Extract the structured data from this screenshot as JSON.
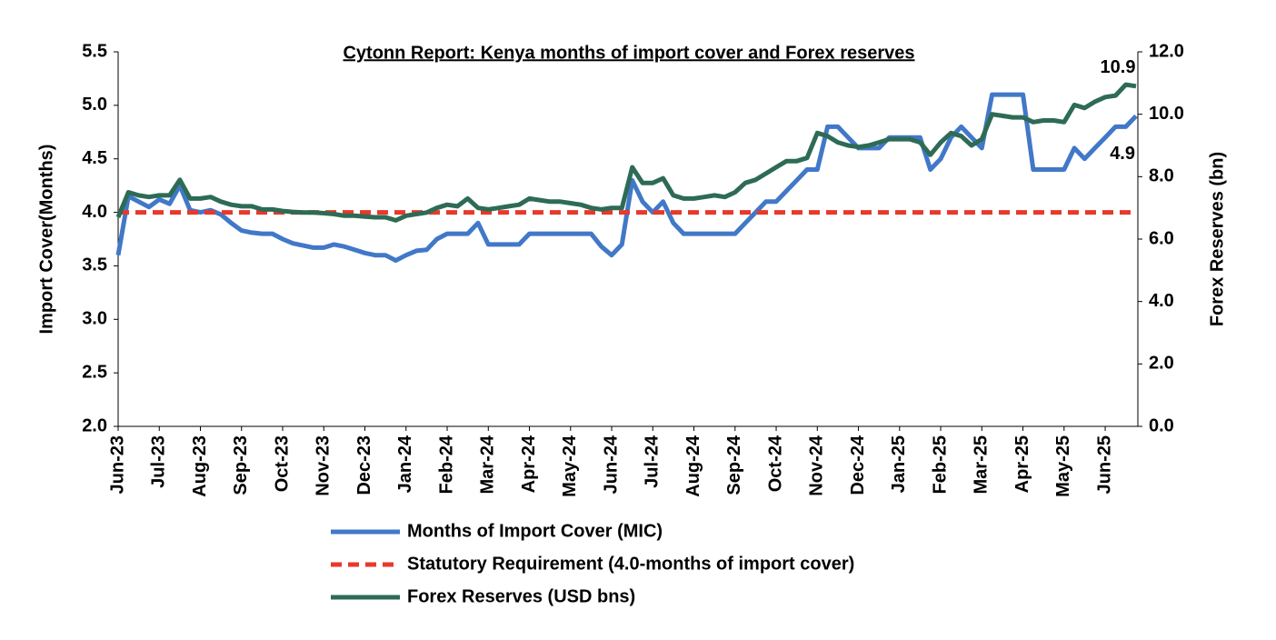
{
  "chart_data": {
    "type": "line",
    "title": "Cytonn Report: Kenya months of import cover and Forex reserves",
    "ylabel": "Import Cover(Months)",
    "y2label": "Forex Reserves (bn)",
    "categories": [
      "Jun-23",
      null,
      null,
      null,
      "Jul-23",
      null,
      null,
      null,
      "Aug-23",
      null,
      null,
      null,
      "Sep-23",
      null,
      null,
      null,
      "Oct-23",
      null,
      null,
      null,
      "Nov-23",
      null,
      null,
      null,
      "Dec-23",
      null,
      null,
      null,
      "Jan-24",
      null,
      null,
      null,
      "Feb-24",
      null,
      null,
      null,
      "Mar-24",
      null,
      null,
      null,
      "Apr-24",
      null,
      null,
      null,
      "May-24",
      null,
      null,
      null,
      "Jun-24",
      null,
      null,
      null,
      "Jul-24",
      null,
      null,
      null,
      "Aug-24",
      null,
      null,
      null,
      "Sep-24",
      null,
      null,
      null,
      "Oct-24",
      null,
      null,
      null,
      "Nov-24",
      null,
      null,
      null,
      "Dec-24",
      null,
      null,
      null,
      "Jan-25",
      null,
      null,
      null,
      "Feb-25",
      null,
      null,
      null,
      "Mar-25",
      null,
      null,
      null,
      "Apr-25",
      null,
      null,
      null,
      "May-25",
      null,
      null,
      null,
      "Jun-25",
      null,
      null,
      null
    ],
    "series": [
      {
        "name": "Months of Import Cover (MIC)",
        "color": "#4178c8",
        "axis": "y",
        "label_last": true,
        "values": [
          3.6,
          4.15,
          4.1,
          4.05,
          4.12,
          4.08,
          4.25,
          4.02,
          4.0,
          4.02,
          3.98,
          3.9,
          3.83,
          3.81,
          3.8,
          3.8,
          3.75,
          3.71,
          3.69,
          3.67,
          3.67,
          3.7,
          3.68,
          3.65,
          3.62,
          3.6,
          3.6,
          3.55,
          3.6,
          3.64,
          3.65,
          3.75,
          3.8,
          3.8,
          3.8,
          3.9,
          3.7,
          3.7,
          3.7,
          3.7,
          3.8,
          3.8,
          3.8,
          3.8,
          3.8,
          3.8,
          3.8,
          3.68,
          3.6,
          3.7,
          4.3,
          4.1,
          4.0,
          4.1,
          3.9,
          3.8,
          3.8,
          3.8,
          3.8,
          3.8,
          3.8,
          3.9,
          4.0,
          4.1,
          4.1,
          4.2,
          4.3,
          4.4,
          4.4,
          4.8,
          4.8,
          4.7,
          4.6,
          4.6,
          4.6,
          4.7,
          4.7,
          4.7,
          4.7,
          4.4,
          4.5,
          4.7,
          4.8,
          4.7,
          4.6,
          5.1,
          5.1,
          5.1,
          5.1,
          4.4,
          4.4,
          4.4,
          4.4,
          4.6,
          4.5,
          4.6,
          4.7,
          4.8,
          4.8,
          4.9
        ]
      },
      {
        "name": "Statutory Requirement (4.0-months of import cover)",
        "color": "#e8392b",
        "axis": "y",
        "dashed": true,
        "values": [
          4,
          4,
          4,
          4,
          4,
          4,
          4,
          4,
          4,
          4,
          4,
          4,
          4,
          4,
          4,
          4,
          4,
          4,
          4,
          4,
          4,
          4,
          4,
          4,
          4,
          4,
          4,
          4,
          4,
          4,
          4,
          4,
          4,
          4,
          4,
          4,
          4,
          4,
          4,
          4,
          4,
          4,
          4,
          4,
          4,
          4,
          4,
          4,
          4,
          4,
          4,
          4,
          4,
          4,
          4,
          4,
          4,
          4,
          4,
          4,
          4,
          4,
          4,
          4,
          4,
          4,
          4,
          4,
          4,
          4,
          4,
          4,
          4,
          4,
          4,
          4,
          4,
          4,
          4,
          4,
          4,
          4,
          4,
          4,
          4,
          4,
          4,
          4,
          4,
          4,
          4,
          4,
          4,
          4,
          4,
          4,
          4,
          4,
          4,
          4
        ]
      },
      {
        "name": "Forex Reserves (USD bns)",
        "color": "#2e6b55",
        "axis": "y2",
        "label_last": true,
        "values": [
          6.7,
          7.5,
          7.4,
          7.35,
          7.4,
          7.4,
          7.9,
          7.3,
          7.3,
          7.35,
          7.2,
          7.1,
          7.05,
          7.05,
          6.95,
          6.95,
          6.9,
          6.87,
          6.85,
          6.85,
          6.83,
          6.8,
          6.75,
          6.75,
          6.72,
          6.7,
          6.7,
          6.6,
          6.75,
          6.8,
          6.85,
          7.0,
          7.1,
          7.05,
          7.3,
          7.0,
          6.95,
          7.0,
          7.05,
          7.1,
          7.3,
          7.25,
          7.2,
          7.2,
          7.15,
          7.1,
          7.0,
          6.95,
          7.0,
          7.0,
          8.3,
          7.8,
          7.8,
          7.95,
          7.4,
          7.3,
          7.3,
          7.35,
          7.4,
          7.35,
          7.5,
          7.8,
          7.9,
          8.1,
          8.3,
          8.5,
          8.5,
          8.6,
          9.4,
          9.3,
          9.1,
          9.0,
          8.95,
          9.0,
          9.1,
          9.2,
          9.2,
          9.2,
          9.1,
          8.7,
          9.1,
          9.4,
          9.3,
          9.0,
          9.2,
          10.0,
          9.95,
          9.9,
          9.9,
          9.75,
          9.8,
          9.8,
          9.75,
          10.3,
          10.2,
          10.4,
          10.55,
          10.6,
          10.95,
          10.9
        ]
      }
    ],
    "ylim": [
      2,
      5.5
    ],
    "yticks": [
      {
        "value": 2,
        "label": "2.0"
      },
      2.5,
      {
        "value": 3,
        "label": "3.0"
      },
      3.5,
      {
        "value": 4,
        "label": "4.0"
      },
      4.5,
      {
        "value": 5,
        "label": "5.0"
      },
      5.5
    ],
    "y2lim": [
      0,
      12
    ],
    "y2ticks": [
      {
        "value": 0,
        "label": "0.0"
      },
      {
        "value": 2,
        "label": "2.0"
      },
      {
        "value": 4,
        "label": "4.0"
      },
      {
        "value": 6,
        "label": "6.0"
      },
      {
        "value": 8,
        "label": "8.0"
      },
      {
        "value": 10,
        "label": "10.0"
      },
      {
        "value": 12,
        "label": "12.0"
      }
    ],
    "grid": false
  }
}
